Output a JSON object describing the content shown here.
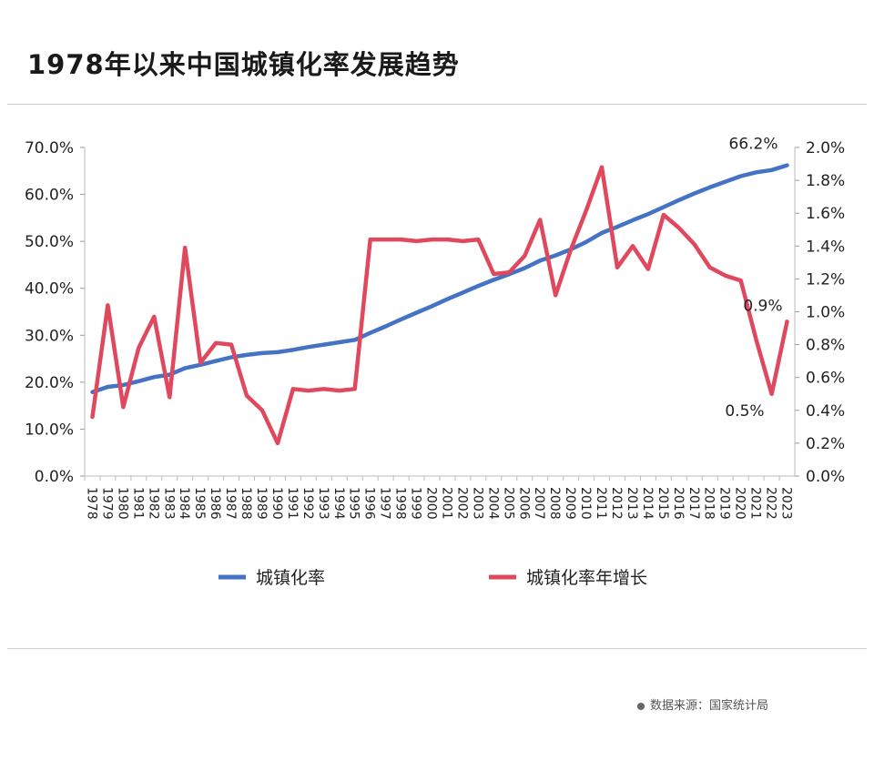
{
  "title": "1978年以来中国城镇化率发展趋势",
  "source": "数据来源：国家统计局",
  "colors": {
    "rate": "#4472c4",
    "growth": "#e0485e"
  },
  "chart_data": {
    "type": "line",
    "categories": [
      "1978",
      "1979",
      "1980",
      "1981",
      "1982",
      "1983",
      "1984",
      "1985",
      "1986",
      "1987",
      "1988",
      "1989",
      "1990",
      "1991",
      "1992",
      "1993",
      "1994",
      "1995",
      "1996",
      "1997",
      "1998",
      "1999",
      "2000",
      "2001",
      "2002",
      "2003",
      "2004",
      "2005",
      "2006",
      "2007",
      "2008",
      "2009",
      "2010",
      "2011",
      "2012",
      "2013",
      "2014",
      "2015",
      "2016",
      "2017",
      "2018",
      "2019",
      "2020",
      "2021",
      "2022",
      "2023"
    ],
    "y_left": {
      "ticks": [
        "0.0%",
        "10.0%",
        "20.0%",
        "30.0%",
        "40.0%",
        "50.0%",
        "60.0%",
        "70.0%"
      ],
      "ylim": [
        0,
        70
      ]
    },
    "y_right": {
      "ticks": [
        "0.0%",
        "0.2%",
        "0.4%",
        "0.6%",
        "0.8%",
        "1.0%",
        "1.2%",
        "1.4%",
        "1.6%",
        "1.8%",
        "2.0%"
      ],
      "ylim": [
        0,
        2.0
      ]
    },
    "series": [
      {
        "name": "城镇化率",
        "axis": "left",
        "values": [
          17.9,
          19.0,
          19.4,
          20.2,
          21.1,
          21.6,
          23.0,
          23.7,
          24.5,
          25.3,
          25.8,
          26.2,
          26.4,
          26.9,
          27.5,
          28.0,
          28.5,
          29.0,
          30.5,
          31.9,
          33.4,
          34.8,
          36.2,
          37.7,
          39.1,
          40.5,
          41.8,
          43.0,
          44.3,
          45.9,
          47.0,
          48.3,
          49.9,
          51.8,
          53.1,
          54.5,
          55.8,
          57.3,
          58.8,
          60.2,
          61.5,
          62.7,
          63.9,
          64.7,
          65.2,
          66.2
        ]
      },
      {
        "name": "城镇化率年增长",
        "axis": "right",
        "values": [
          0.36,
          1.04,
          0.42,
          0.78,
          0.97,
          0.48,
          1.39,
          0.69,
          0.81,
          0.8,
          0.49,
          0.4,
          0.2,
          0.53,
          0.52,
          0.53,
          0.52,
          0.53,
          1.44,
          1.44,
          1.44,
          1.43,
          1.44,
          1.44,
          1.43,
          1.44,
          1.23,
          1.24,
          1.34,
          1.56,
          1.1,
          1.38,
          1.62,
          1.88,
          1.27,
          1.4,
          1.26,
          1.59,
          1.51,
          1.41,
          1.27,
          1.22,
          1.19,
          0.83,
          0.5,
          0.94
        ]
      }
    ],
    "annotations": [
      {
        "text": "66.2%",
        "year": "2023",
        "series": "城镇化率"
      },
      {
        "text": "0.9%",
        "year": "2023",
        "series": "城镇化率年增长"
      },
      {
        "text": "0.5%",
        "year": "2022",
        "series": "城镇化率年增长"
      }
    ],
    "legend": "bottom",
    "grid": false
  }
}
